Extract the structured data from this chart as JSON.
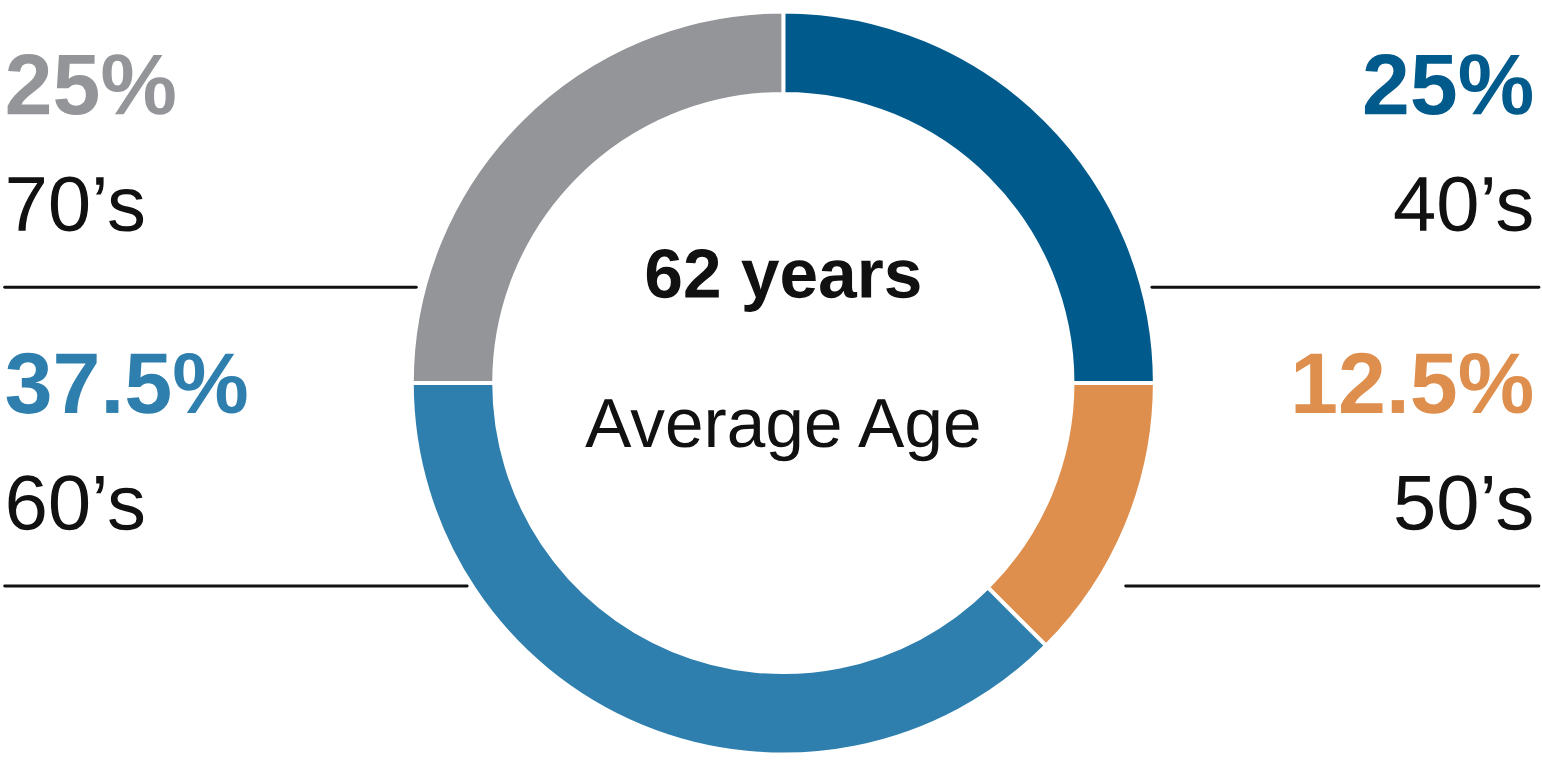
{
  "chart_data": {
    "type": "donut",
    "categories": [
      "40’s",
      "50’s",
      "60’s",
      "70’s"
    ],
    "values": [
      25,
      12.5,
      37.5,
      25
    ],
    "colors": [
      "#005a8c",
      "#de8f4e",
      "#2e7fad",
      "#939598"
    ],
    "value_labels": [
      "25%",
      "12.5%",
      "37.5%",
      "25%"
    ],
    "annotations": [
      "62 years",
      "Average Age"
    ]
  }
}
